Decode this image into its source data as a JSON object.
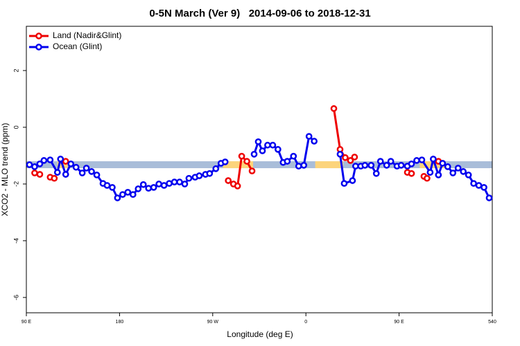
{
  "chart_data": {
    "type": "line",
    "title": "0-5N March (Ver 9)   2014-09-06 to 2018-12-31",
    "x_label": "Longitude (deg E)",
    "y_label": "XCO2 - MLO trend (ppm)",
    "xlim": [
      90,
      540
    ],
    "xticks": [
      {
        "value": 90,
        "label": "90 E"
      },
      180,
      {
        "value": 270,
        "label": "90 W"
      },
      {
        "value": 360,
        "label": "0"
      },
      {
        "value": 450,
        "label": "90 E"
      },
      540
    ],
    "ylim": [
      -6.54,
      3.56
    ],
    "yticks": [
      2,
      0,
      -2,
      -4,
      -6
    ],
    "legend": "top-left",
    "reference": {
      "value": -1.32,
      "color": "#a9bdd9"
    },
    "highlights": {
      "color": "#fcd47c",
      "ranges": [
        [
          120,
          130
        ],
        [
          280,
          309
        ],
        [
          369,
          396
        ],
        [
          470,
          494
        ]
      ]
    },
    "series": [
      {
        "name": "Land (Nadir&Glint)",
        "color": "#ee0000",
        "x": [
          98,
          103,
          108,
          113,
          117,
          122,
          128,
          250,
          285,
          290,
          294,
          298,
          303,
          308,
          350,
          387,
          393,
          398,
          403,
          407,
          430,
          458,
          462,
          468,
          474,
          477,
          483,
          488
        ],
        "values": [
          -1.61,
          -1.66,
          null,
          -1.76,
          -1.8,
          null,
          -1.2,
          null,
          -1.88,
          -2.0,
          -2.07,
          -1.02,
          -1.2,
          -1.54,
          null,
          0.66,
          -0.78,
          -1.07,
          -1.17,
          -1.05,
          null,
          -1.59,
          -1.63,
          null,
          -1.73,
          -1.8,
          null,
          -1.2
        ]
      },
      {
        "name": "Ocean (Glint)",
        "color": "#0000ee",
        "x": [
          93,
          98,
          103,
          107,
          113,
          120,
          123,
          128,
          133,
          138,
          144,
          148,
          153,
          158,
          164,
          168,
          173,
          178,
          183,
          188,
          193,
          198,
          203,
          208,
          213,
          218,
          223,
          228,
          233,
          238,
          243,
          247,
          253,
          257,
          263,
          267,
          273,
          278,
          282,
          296,
          310,
          314,
          318,
          323,
          328,
          333,
          338,
          342,
          348,
          353,
          358,
          363,
          368,
          380,
          393,
          397,
          405,
          408,
          413,
          417,
          423,
          428,
          432,
          438,
          442,
          448,
          452,
          458,
          462,
          467,
          472,
          480,
          483,
          488,
          492,
          497,
          502,
          507,
          512,
          517,
          522,
          527,
          532,
          537
        ],
        "values": [
          -1.32,
          -1.39,
          -1.29,
          -1.17,
          -1.15,
          -1.59,
          -1.12,
          -1.66,
          -1.29,
          -1.41,
          -1.61,
          -1.44,
          -1.56,
          -1.68,
          -1.98,
          -2.05,
          -2.12,
          -2.49,
          -2.37,
          -2.29,
          -2.37,
          -2.17,
          -2.02,
          -2.15,
          -2.12,
          -2.0,
          -2.05,
          -1.98,
          -1.93,
          -1.93,
          -2.0,
          -1.8,
          -1.76,
          -1.71,
          -1.66,
          -1.63,
          -1.46,
          -1.27,
          -1.22,
          null,
          -0.95,
          -0.51,
          -0.83,
          -0.63,
          -0.63,
          -0.78,
          -1.24,
          -1.2,
          -1.02,
          -1.37,
          -1.34,
          -0.32,
          -0.49,
          null,
          -0.95,
          -1.98,
          -1.88,
          -1.37,
          -1.37,
          -1.34,
          -1.34,
          -1.63,
          -1.2,
          -1.34,
          -1.2,
          -1.37,
          -1.34,
          -1.37,
          -1.29,
          -1.17,
          -1.15,
          -1.59,
          -1.12,
          -1.68,
          -1.27,
          -1.39,
          -1.61,
          -1.44,
          -1.56,
          -1.68,
          -1.98,
          -2.05,
          -2.12,
          -2.49
        ]
      }
    ]
  }
}
